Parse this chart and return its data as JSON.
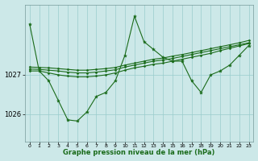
{
  "background_color": "#cce8e8",
  "plot_bg_color": "#cce8e8",
  "grid_color": "#99cccc",
  "line_color": "#1a6b1a",
  "xlabel": "Graphe pression niveau de la mer (hPa)",
  "xlim": [
    -0.5,
    23.5
  ],
  "ylim": [
    1025.3,
    1028.8
  ],
  "yticks": [
    1026,
    1027
  ],
  "xticks": [
    0,
    1,
    2,
    3,
    4,
    5,
    6,
    7,
    8,
    9,
    10,
    11,
    12,
    13,
    14,
    15,
    16,
    17,
    18,
    19,
    20,
    21,
    22,
    23
  ],
  "series1_x": [
    0,
    1,
    2,
    3,
    4,
    5,
    6,
    7,
    8,
    9,
    10,
    11,
    12,
    13,
    14,
    15,
    16,
    17,
    18,
    19,
    20,
    21,
    22,
    23
  ],
  "series1_y": [
    1028.3,
    1027.1,
    1026.85,
    1026.35,
    1025.85,
    1025.82,
    1026.05,
    1026.45,
    1026.55,
    1026.85,
    1027.5,
    1028.5,
    1027.85,
    1027.65,
    1027.45,
    1027.35,
    1027.35,
    1026.85,
    1026.55,
    1027.0,
    1027.1,
    1027.25,
    1027.5,
    1027.75
  ],
  "series2_x": [
    0,
    1,
    2,
    3,
    4,
    5,
    6,
    7,
    8,
    9,
    10,
    11,
    12,
    13,
    14,
    15,
    16,
    17,
    18,
    19,
    20,
    21,
    22,
    23
  ],
  "series2_y": [
    1027.1,
    1027.1,
    1027.05,
    1027.0,
    1026.97,
    1026.95,
    1026.95,
    1026.97,
    1027.0,
    1027.05,
    1027.12,
    1027.18,
    1027.22,
    1027.27,
    1027.3,
    1027.35,
    1027.4,
    1027.45,
    1027.5,
    1027.55,
    1027.62,
    1027.68,
    1027.74,
    1027.8
  ],
  "series3_x": [
    0,
    1,
    2,
    3,
    4,
    5,
    6,
    7,
    8,
    9,
    10,
    11,
    12,
    13,
    14,
    15,
    16,
    17,
    18,
    19,
    20,
    21,
    22,
    23
  ],
  "series3_y": [
    1027.15,
    1027.14,
    1027.12,
    1027.1,
    1027.07,
    1027.05,
    1027.05,
    1027.07,
    1027.1,
    1027.13,
    1027.2,
    1027.25,
    1027.3,
    1027.35,
    1027.38,
    1027.42,
    1027.47,
    1027.52,
    1027.57,
    1027.62,
    1027.67,
    1027.72,
    1027.77,
    1027.82
  ],
  "series4_x": [
    0,
    1,
    2,
    3,
    4,
    5,
    6,
    7,
    8,
    9,
    10,
    11,
    12,
    13,
    14,
    15,
    16,
    17,
    18,
    19,
    20,
    21,
    22,
    23
  ],
  "series4_y": [
    1027.2,
    1027.19,
    1027.18,
    1027.16,
    1027.14,
    1027.12,
    1027.12,
    1027.14,
    1027.16,
    1027.19,
    1027.25,
    1027.3,
    1027.35,
    1027.4,
    1027.43,
    1027.48,
    1027.52,
    1027.57,
    1027.62,
    1027.67,
    1027.72,
    1027.77,
    1027.82,
    1027.88
  ]
}
